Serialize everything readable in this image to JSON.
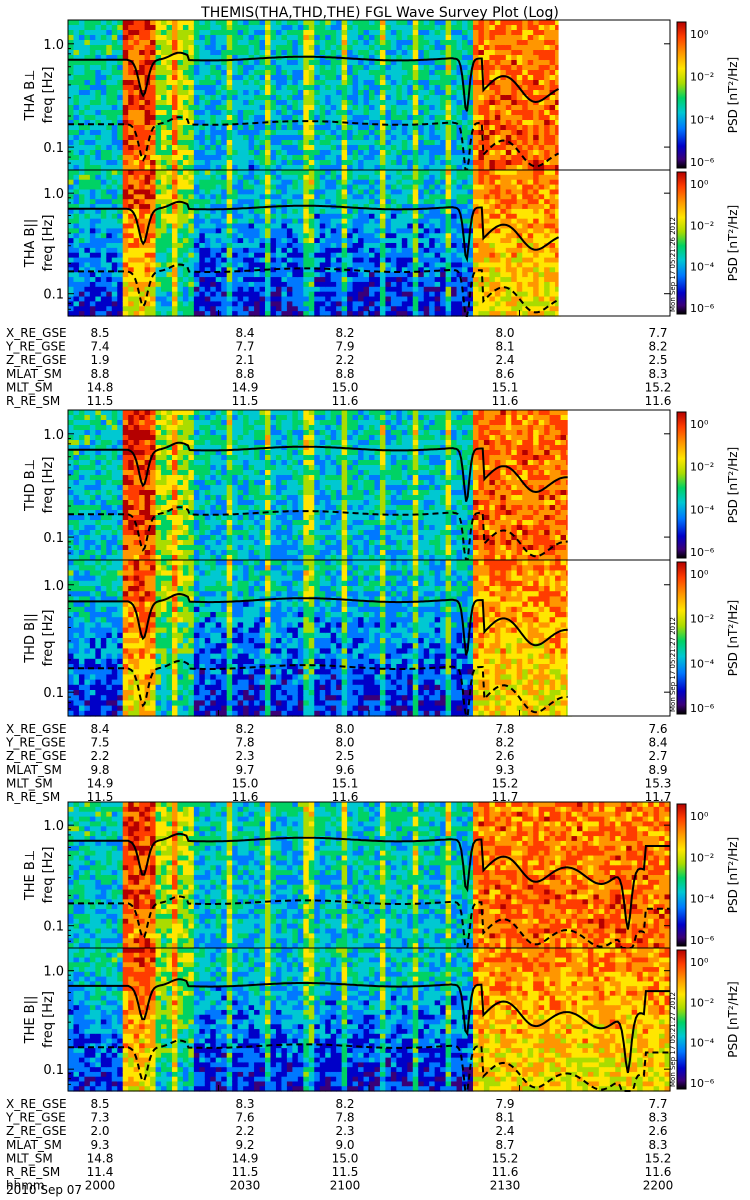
{
  "title": "THEMIS(THA,THD,THE) FGL Wave Survey Plot (Log)",
  "chart_data": {
    "type": "heatmap",
    "title": "THEMIS(THA,THD,THE) FGL Wave Survey Plot (Log)",
    "x_range_hhmm": [
      "2000",
      "2200"
    ],
    "y_scale": "log",
    "y_range_hz": [
      0.06,
      1.7
    ],
    "y_ticks": [
      "1.0",
      "0.1"
    ],
    "y_label": "freq [Hz]",
    "colorbar": {
      "label": "PSD [nT²/Hz]",
      "scale": "log",
      "ticks": [
        "10⁰",
        "10⁻²",
        "10⁻⁴",
        "10⁻⁶"
      ],
      "colors": [
        "#000000",
        "#3a0078",
        "#0000c8",
        "#0078ff",
        "#00c8d2",
        "#00d264",
        "#aadc00",
        "#ffe600",
        "#ff9600",
        "#ff3c00",
        "#b40000"
      ]
    },
    "curves": [
      "solid: gyrofrequency",
      "dashed: lower reference"
    ],
    "panels": [
      {
        "probe": "THA",
        "component": "B⊥",
        "label": "THA B⊥",
        "data_end_fraction": 0.815
      },
      {
        "probe": "THA",
        "component": "B||",
        "label": "THA B||",
        "data_end_fraction": 0.815,
        "stamp": "Mon Sep 17 05:21:26 2012"
      },
      {
        "probe": "THD",
        "component": "B⊥",
        "label": "THD B⊥",
        "data_end_fraction": 0.83
      },
      {
        "probe": "THD",
        "component": "B||",
        "label": "THD B||",
        "data_end_fraction": 0.83,
        "stamp": "Mon Sep 17 05:21:27 2012"
      },
      {
        "probe": "THE",
        "component": "B⊥",
        "label": "THE B⊥",
        "data_end_fraction": 1.0
      },
      {
        "probe": "THE",
        "component": "B||",
        "label": "THE B||",
        "data_end_fraction": 1.0,
        "stamp": "Mon Sep 17 05:21:27 2012"
      }
    ],
    "ephemeris": [
      {
        "probe": "THA",
        "rows": [
          {
            "label": "X_RE_GSE",
            "values": [
              "8.5",
              "8.4",
              "8.2",
              "8.0",
              "7.7"
            ]
          },
          {
            "label": "Y_RE_GSE",
            "values": [
              "7.4",
              "7.7",
              "7.9",
              "8.1",
              "8.2"
            ]
          },
          {
            "label": "Z_RE_GSE",
            "values": [
              "1.9",
              "2.1",
              "2.2",
              "2.4",
              "2.5"
            ]
          },
          {
            "label": "MLAT_SM",
            "values": [
              "8.8",
              "8.8",
              "8.8",
              "8.6",
              "8.3"
            ]
          },
          {
            "label": "MLT_SM",
            "values": [
              "14.8",
              "14.9",
              "15.0",
              "15.1",
              "15.2"
            ]
          },
          {
            "label": "R_RE_SM",
            "values": [
              "11.5",
              "11.5",
              "11.6",
              "11.6",
              "11.6"
            ]
          }
        ]
      },
      {
        "probe": "THD",
        "rows": [
          {
            "label": "X_RE_GSE",
            "values": [
              "8.4",
              "8.2",
              "8.0",
              "7.8",
              "7.6"
            ]
          },
          {
            "label": "Y_RE_GSE",
            "values": [
              "7.5",
              "7.8",
              "8.0",
              "8.2",
              "8.4"
            ]
          },
          {
            "label": "Z_RE_GSE",
            "values": [
              "2.2",
              "2.3",
              "2.5",
              "2.6",
              "2.7"
            ]
          },
          {
            "label": "MLAT_SM",
            "values": [
              "9.8",
              "9.7",
              "9.6",
              "9.3",
              "8.9"
            ]
          },
          {
            "label": "MLT_SM",
            "values": [
              "14.9",
              "15.0",
              "15.1",
              "15.2",
              "15.3"
            ]
          },
          {
            "label": "R_RE_SM",
            "values": [
              "11.5",
              "11.6",
              "11.6",
              "11.7",
              "11.7"
            ]
          }
        ]
      },
      {
        "probe": "THE",
        "rows": [
          {
            "label": "X_RE_GSE",
            "values": [
              "8.5",
              "8.3",
              "8.2",
              "7.9",
              "7.7"
            ]
          },
          {
            "label": "Y_RE_GSE",
            "values": [
              "7.3",
              "7.6",
              "7.8",
              "8.1",
              "8.3"
            ]
          },
          {
            "label": "Z_RE_GSE",
            "values": [
              "2.0",
              "2.2",
              "2.3",
              "2.4",
              "2.6"
            ]
          },
          {
            "label": "MLAT_SM",
            "values": [
              "9.3",
              "9.2",
              "9.0",
              "8.7",
              "8.3"
            ]
          },
          {
            "label": "MLT_SM",
            "values": [
              "14.8",
              "14.9",
              "15.0",
              "15.2",
              "15.2"
            ]
          },
          {
            "label": "R_RE_SM",
            "values": [
              "11.4",
              "11.5",
              "11.5",
              "11.6",
              "11.6"
            ]
          },
          {
            "label": "hhmm",
            "values": [
              "2000",
              "2030",
              "2100",
              "2130",
              "2200"
            ]
          }
        ]
      }
    ],
    "date_label": "2010 Sep 07"
  }
}
